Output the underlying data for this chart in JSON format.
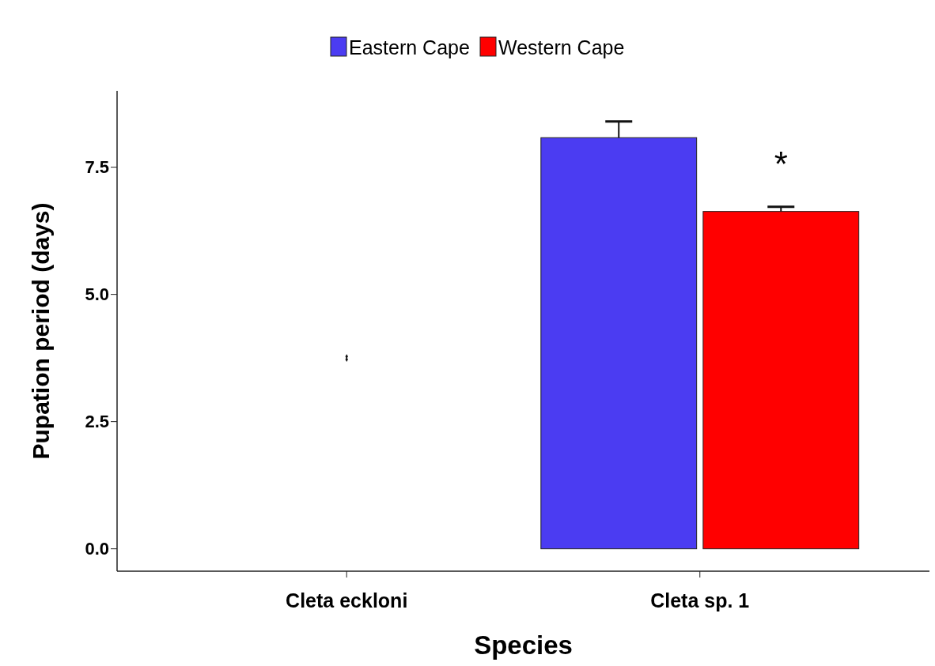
{
  "chart_data": {
    "type": "bar",
    "xlabel": "Species",
    "ylabel": "Pupation period (days)",
    "categories": [
      "Cleta eckloni",
      "Cleta sp. 1"
    ],
    "series": [
      {
        "name": "Eastern Cape",
        "color": "#4b3cf2",
        "values": [
          null,
          8.08
        ],
        "errors": [
          null,
          0.32
        ]
      },
      {
        "name": "Western Cape",
        "color": "#ff0000",
        "values": [
          null,
          6.63
        ],
        "errors": [
          null,
          0.09
        ]
      },
      {
        "type": "scatter",
        "color": "#111111",
        "marker": "diamond",
        "x": [
          "Cleta eckloni"
        ],
        "values": [
          3.78
        ]
      },
      {
        "type": "scatter",
        "color": "#111111",
        "marker": "diamond",
        "x": [
          "Cleta eckloni"
        ],
        "values": [
          3.72
        ]
      }
    ],
    "ylim": [
      -0.44,
      9.0
    ],
    "yticks": [
      {
        "value": 0,
        "label": "0.0"
      },
      {
        "value": 2.5,
        "label": "2.5"
      },
      {
        "value": 5,
        "label": "5.0"
      },
      {
        "value": 7.5,
        "label": "7.5"
      }
    ],
    "annotations": [
      {
        "text": "*",
        "x": "Cleta sp. 1",
        "y": 7.8
      }
    ],
    "legend": "top",
    "grid": false
  }
}
